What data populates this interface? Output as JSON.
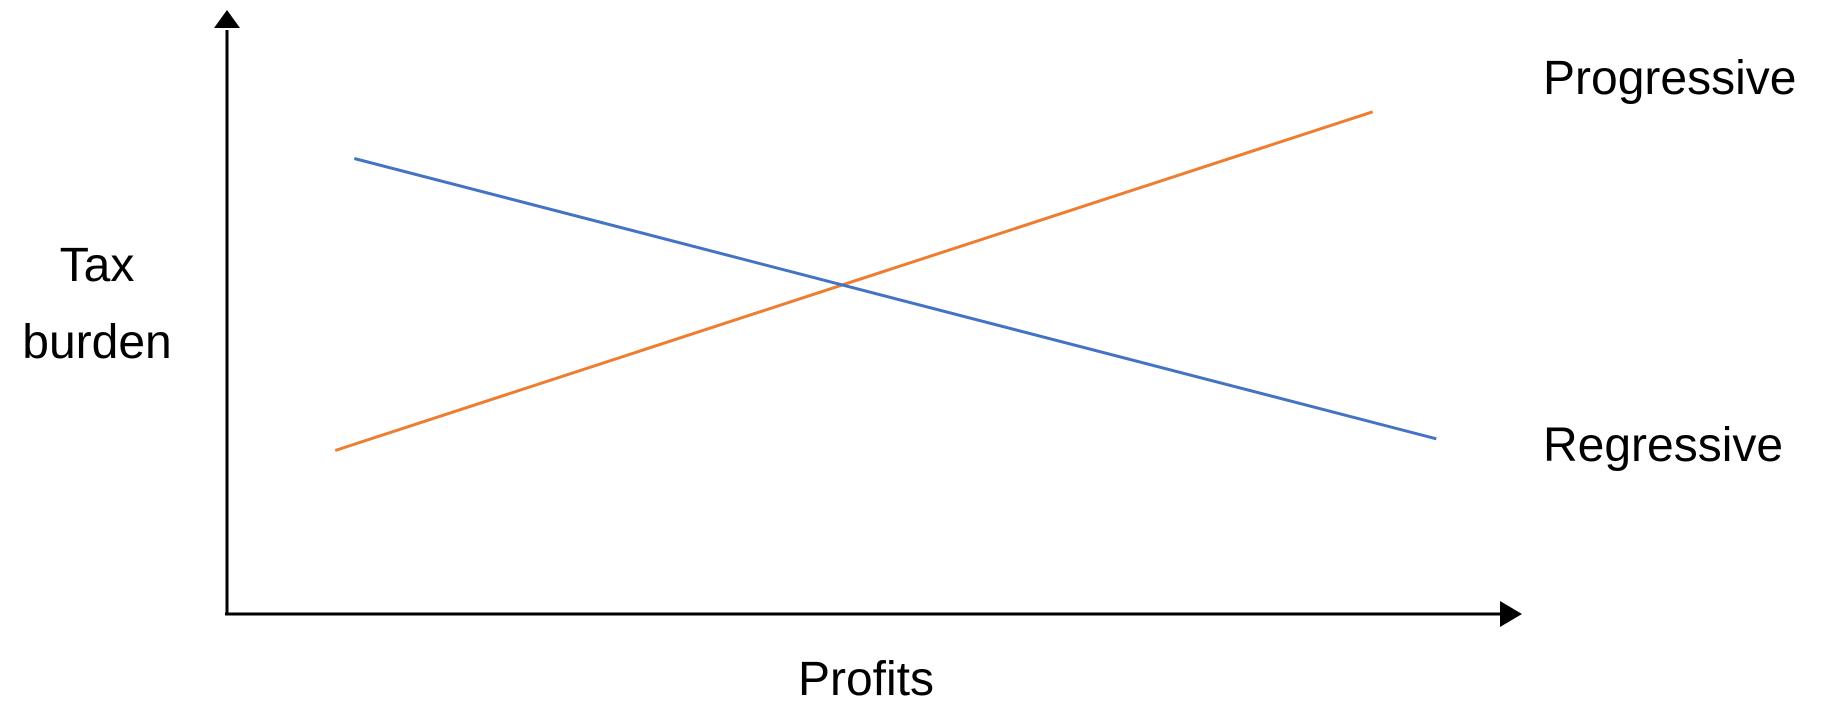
{
  "chart_data": {
    "type": "line",
    "title": "",
    "xlabel": "Profits",
    "ylabel_lines": [
      "Tax",
      "burden"
    ],
    "xlim": [
      0,
      100
    ],
    "ylim": [
      0,
      100
    ],
    "grid": false,
    "legend": "direct-labels-right",
    "series": [
      {
        "name": "Progressive",
        "color": "#ED7D31",
        "x": [
          8.5,
          90
        ],
        "y": [
          28,
          86
        ]
      },
      {
        "name": "Regressive",
        "color": "#4472C4",
        "x": [
          10,
          95
        ],
        "y": [
          78,
          30
        ]
      }
    ]
  }
}
